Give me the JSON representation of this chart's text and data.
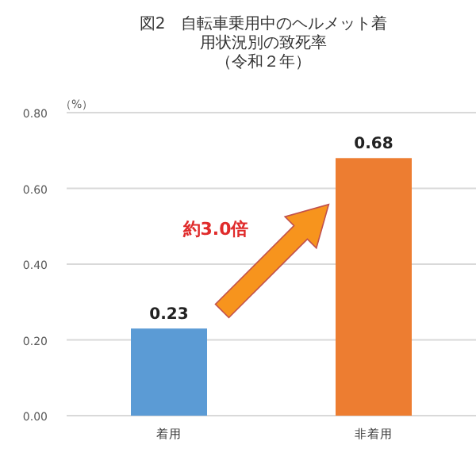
{
  "chart_data": {
    "type": "bar",
    "title": "図2　自転車乗用中のヘルメット着用状況別の致死率",
    "subtitle": "（令和２年）",
    "ylabel": "（%）",
    "categories": [
      "着用",
      "非着用"
    ],
    "values": [
      0.23,
      0.68
    ],
    "colors": [
      "#5b9bd5",
      "#ed7d31"
    ],
    "ylim": [
      0,
      0.8
    ],
    "yticks": [
      {
        "value": 0,
        "label": "0.00"
      },
      {
        "value": 0.2,
        "label": "0.20"
      },
      {
        "value": 0.4,
        "label": "0.40"
      },
      {
        "value": 0.6,
        "label": "0.60"
      },
      {
        "value": 0.8,
        "label": "0.80"
      }
    ],
    "grid": "y",
    "data_labels": true,
    "annotations": [
      "約3.0倍"
    ]
  }
}
